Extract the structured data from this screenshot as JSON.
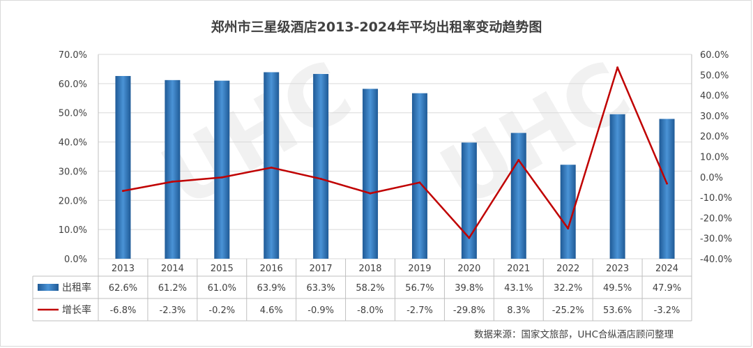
{
  "chart_data": {
    "type": "bar+line",
    "title": "郑州市三星级酒店2013-2024年平均出租率变动趋势图",
    "categories": [
      "2013",
      "2014",
      "2015",
      "2016",
      "2017",
      "2018",
      "2019",
      "2020",
      "2021",
      "2022",
      "2023",
      "2024"
    ],
    "series": [
      {
        "name": "出租率",
        "type": "bar",
        "axis": "left",
        "color": "#2e75b6",
        "values": [
          62.6,
          61.2,
          61.0,
          63.9,
          63.3,
          58.2,
          56.7,
          39.8,
          43.1,
          32.2,
          49.5,
          47.9
        ],
        "labels": [
          "62.6%",
          "61.2%",
          "61.0%",
          "63.9%",
          "63.3%",
          "58.2%",
          "56.7%",
          "39.8%",
          "43.1%",
          "32.2%",
          "49.5%",
          "47.9%"
        ]
      },
      {
        "name": "增长率",
        "type": "line",
        "axis": "right",
        "color": "#c00000",
        "values": [
          -6.8,
          -2.3,
          -0.2,
          4.6,
          -0.9,
          -8.0,
          -2.7,
          -29.8,
          8.3,
          -25.2,
          53.6,
          -3.2
        ],
        "labels": [
          "-6.8%",
          "-2.3%",
          "-0.2%",
          "4.6%",
          "-0.9%",
          "-8.0%",
          "-2.7%",
          "-29.8%",
          "8.3%",
          "-25.2%",
          "53.6%",
          "-3.2%"
        ]
      }
    ],
    "y_left": {
      "min": 0,
      "max": 70,
      "step": 10,
      "ticks": [
        "0.0%",
        "10.0%",
        "20.0%",
        "30.0%",
        "40.0%",
        "50.0%",
        "60.0%",
        "70.0%"
      ]
    },
    "y_right": {
      "min": -40,
      "max": 60,
      "step": 10,
      "ticks": [
        "-40.0%",
        "-30.0%",
        "-20.0%",
        "-10.0%",
        "0.0%",
        "10.0%",
        "20.0%",
        "30.0%",
        "40.0%",
        "50.0%",
        "60.0%"
      ]
    },
    "grid": true,
    "data_table": true
  },
  "source": "数据来源：国家文旅部，UHC合纵酒店顾问整理"
}
